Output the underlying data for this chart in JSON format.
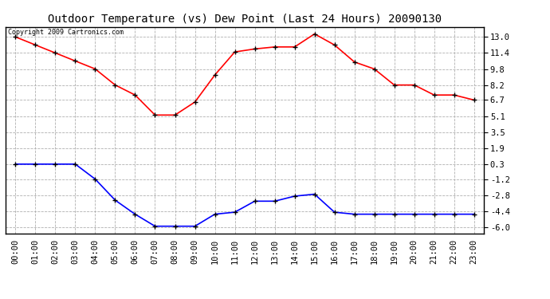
{
  "title": "Outdoor Temperature (vs) Dew Point (Last 24 Hours) 20090130",
  "copyright_text": "Copyright 2009 Cartronics.com",
  "x_labels": [
    "00:00",
    "01:00",
    "02:00",
    "03:00",
    "04:00",
    "05:00",
    "06:00",
    "07:00",
    "08:00",
    "09:00",
    "10:00",
    "11:00",
    "12:00",
    "13:00",
    "14:00",
    "15:00",
    "16:00",
    "17:00",
    "18:00",
    "19:00",
    "20:00",
    "21:00",
    "22:00",
    "23:00"
  ],
  "temp_values": [
    13.0,
    12.2,
    11.4,
    10.6,
    9.8,
    8.2,
    7.2,
    5.2,
    5.2,
    6.5,
    9.2,
    11.5,
    11.8,
    12.0,
    12.0,
    13.3,
    12.2,
    10.5,
    9.8,
    8.2,
    8.2,
    7.2,
    7.2,
    6.7
  ],
  "dew_values": [
    0.3,
    0.3,
    0.3,
    0.3,
    -1.2,
    -3.3,
    -4.7,
    -5.9,
    -5.9,
    -5.9,
    -4.7,
    -4.5,
    -3.4,
    -3.4,
    -2.9,
    -2.7,
    -4.5,
    -4.7,
    -4.7,
    -4.7,
    -4.7,
    -4.7,
    -4.7,
    -4.7
  ],
  "temp_color": "#ff0000",
  "dew_color": "#0000ff",
  "background_color": "#ffffff",
  "plot_bg_color": "#ffffff",
  "grid_color": "#b0b0b0",
  "yticks": [
    13.0,
    11.4,
    9.8,
    8.2,
    6.7,
    5.1,
    3.5,
    1.9,
    0.3,
    -1.2,
    -2.8,
    -4.4,
    -6.0
  ],
  "ylim": [
    -6.6,
    14.0
  ],
  "title_fontsize": 10,
  "tick_fontsize": 7.5,
  "copyright_fontsize": 6,
  "marker": "+",
  "marker_size": 5,
  "marker_edge_width": 1.0,
  "line_width": 1.2
}
